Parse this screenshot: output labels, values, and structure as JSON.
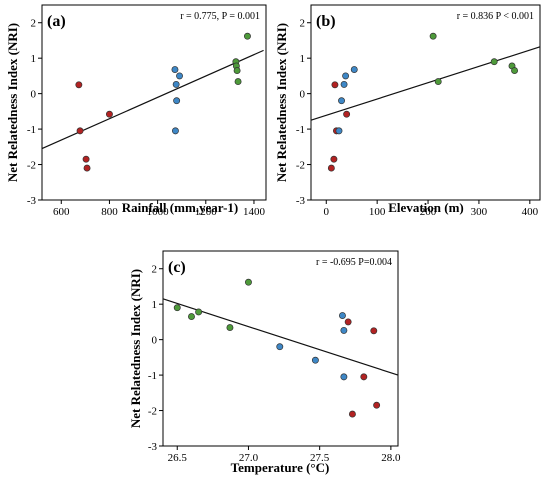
{
  "colors": {
    "red": "#b22222",
    "blue": "#3e87c6",
    "green": "#4e9a3a"
  },
  "chart_data": [
    {
      "type": "scatter",
      "panel_label": "(a)",
      "stat_text": "r = 0.775, P = 0.001",
      "xlabel": "Rainfall (mm.year-1)",
      "ylabel": "Net Relatedness Index (NRI)",
      "xlim": [
        520,
        1450
      ],
      "ylim": [
        -3,
        2.5
      ],
      "xticks": [
        600,
        800,
        1000,
        1200,
        1400
      ],
      "yticks": [
        -3,
        -2,
        -1,
        0,
        1,
        2
      ],
      "trend": {
        "x": [
          520,
          1440
        ],
        "y": [
          -1.55,
          1.22
        ]
      },
      "series": [
        {
          "color": "red",
          "x": [
            673,
            678,
            703,
            707,
            800
          ],
          "y": [
            0.25,
            -1.05,
            -1.85,
            -2.1,
            -0.58
          ]
        },
        {
          "color": "blue",
          "x": [
            1072,
            1074,
            1077,
            1079,
            1091
          ],
          "y": [
            0.68,
            -1.05,
            0.26,
            -0.2,
            0.5
          ]
        },
        {
          "color": "green",
          "x": [
            1325,
            1327,
            1330,
            1334,
            1373
          ],
          "y": [
            0.9,
            0.78,
            0.65,
            0.34,
            1.62
          ]
        }
      ]
    },
    {
      "type": "scatter",
      "panel_label": "(b)",
      "stat_text": "r = 0.836 P < 0.001",
      "xlabel": "Elevation (m)",
      "ylabel": "Net Relatedness Index (NRI)",
      "xlim": [
        -30,
        420
      ],
      "ylim": [
        -3,
        2.5
      ],
      "xticks": [
        0,
        100,
        200,
        300,
        400
      ],
      "yticks": [
        -3,
        -2,
        -1,
        0,
        1,
        2
      ],
      "trend": {
        "x": [
          -30,
          420
        ],
        "y": [
          -0.75,
          1.32
        ]
      },
      "series": [
        {
          "color": "red",
          "x": [
            10,
            15,
            17,
            20,
            40
          ],
          "y": [
            -2.1,
            -1.85,
            0.25,
            -1.05,
            -0.58
          ]
        },
        {
          "color": "blue",
          "x": [
            25,
            30,
            35,
            38,
            55
          ],
          "y": [
            -1.05,
            -0.2,
            0.26,
            0.5,
            0.68
          ]
        },
        {
          "color": "green",
          "x": [
            210,
            220,
            330,
            365,
            370
          ],
          "y": [
            1.62,
            0.34,
            0.9,
            0.78,
            0.65
          ]
        }
      ]
    },
    {
      "type": "scatter",
      "panel_label": "(c)",
      "stat_text": "r = -0.695 P=0.004",
      "xlabel": "Temperature (°C)",
      "ylabel": "Net Relatedness Index (NRI)",
      "xlim": [
        26.4,
        28.05
      ],
      "ylim": [
        -3,
        2.5
      ],
      "xticks": [
        26.5,
        27.0,
        27.5,
        28.0
      ],
      "xticklabels": [
        "26.5",
        "27.0",
        "27.5",
        "28.0"
      ],
      "yticks": [
        -3,
        -2,
        -1,
        0,
        1,
        2
      ],
      "trend": {
        "x": [
          26.4,
          28.05
        ],
        "y": [
          1.15,
          -1.0
        ]
      },
      "series": [
        {
          "color": "green",
          "x": [
            26.5,
            26.6,
            26.65,
            26.87,
            27.0
          ],
          "y": [
            0.9,
            0.65,
            0.78,
            0.34,
            1.62
          ]
        },
        {
          "color": "blue",
          "x": [
            27.22,
            27.47,
            27.66,
            27.67,
            27.67
          ],
          "y": [
            -0.2,
            -0.58,
            0.68,
            0.26,
            -1.05
          ]
        },
        {
          "color": "red",
          "x": [
            27.7,
            27.73,
            27.81,
            27.88,
            27.9
          ],
          "y": [
            0.5,
            -2.1,
            -1.05,
            0.25,
            -1.85
          ]
        }
      ]
    }
  ]
}
